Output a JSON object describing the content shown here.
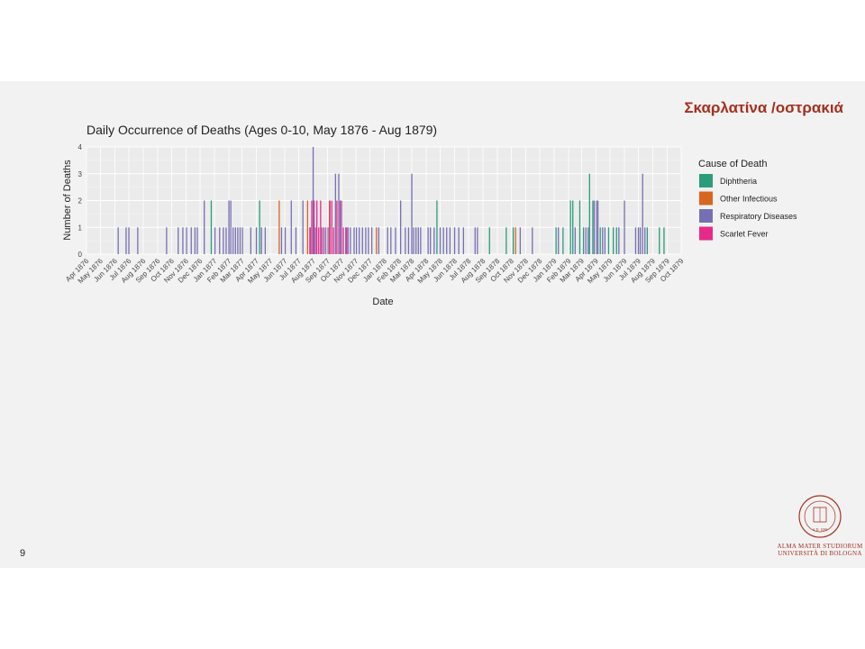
{
  "slide": {
    "title": "Σκαρλατίνα /οστρακιά",
    "page_number": "9",
    "logo_line1": "ALMA MATER STUDIORUM",
    "logo_line2": "UNIVERSITÀ DI BOLOGNA",
    "logo_seal_text": "A.D. 1088",
    "accent_color": "#a5301f"
  },
  "chart_data": {
    "type": "bar",
    "title": "Daily Occurrence of Deaths (Ages 0-10, May 1876 - Aug 1879)",
    "xlabel": "Date",
    "ylabel": "Number of Deaths",
    "ylim": [
      0,
      4
    ],
    "yticks": [
      "0",
      "1",
      "2",
      "3",
      "4"
    ],
    "xlim": [
      "1876-04-01",
      "1879-10-01"
    ],
    "xticks": [
      "Apr 1876",
      "May 1876",
      "Jun 1876",
      "Jul 1876",
      "Aug 1876",
      "Sep 1876",
      "Oct 1876",
      "Nov 1876",
      "Dec 1876",
      "Jan 1877",
      "Feb 1877",
      "Mar 1877",
      "Apr 1877",
      "May 1877",
      "Jun 1877",
      "Jul 1877",
      "Aug 1877",
      "Sep 1877",
      "Oct 1877",
      "Nov 1877",
      "Dec 1877",
      "Jan 1878",
      "Feb 1878",
      "Mar 1878",
      "Apr 1878",
      "May 1878",
      "Jun 1878",
      "Jul 1878",
      "Aug 1878",
      "Sep 1878",
      "Oct 1878",
      "Nov 1878",
      "Dec 1878",
      "Jan 1879",
      "Feb 1879",
      "Mar 1879",
      "Apr 1879",
      "May 1879",
      "Jun 1879",
      "Jul 1879",
      "Aug 1879",
      "Sep 1879",
      "Oct 1879"
    ],
    "grid": true,
    "legend_placement": "right",
    "legend_title": "Cause of Death",
    "series": [
      {
        "name": "Diphtheria",
        "color": "#2a9d7b",
        "points": [
          {
            "date": "1876-12-25",
            "value": 2
          },
          {
            "date": "1877-04-08",
            "value": 2
          },
          {
            "date": "1878-04-24",
            "value": 2
          },
          {
            "date": "1878-08-15",
            "value": 1
          },
          {
            "date": "1878-09-20",
            "value": 1
          },
          {
            "date": "1878-10-05",
            "value": 1
          },
          {
            "date": "1879-01-05",
            "value": 1
          },
          {
            "date": "1879-01-20",
            "value": 1
          },
          {
            "date": "1879-02-05",
            "value": 2
          },
          {
            "date": "1879-02-10",
            "value": 2
          },
          {
            "date": "1879-02-25",
            "value": 2
          },
          {
            "date": "1879-03-05",
            "value": 1
          },
          {
            "date": "1879-03-18",
            "value": 3
          },
          {
            "date": "1879-03-25",
            "value": 2
          },
          {
            "date": "1879-04-10",
            "value": 1
          },
          {
            "date": "1879-04-28",
            "value": 1
          },
          {
            "date": "1879-05-08",
            "value": 1
          },
          {
            "date": "1879-05-15",
            "value": 1
          },
          {
            "date": "1879-07-20",
            "value": 1
          },
          {
            "date": "1879-08-15",
            "value": 1
          },
          {
            "date": "1879-08-25",
            "value": 1
          }
        ]
      },
      {
        "name": "Other Infectious",
        "color": "#d9661f",
        "points": [
          {
            "date": "1877-05-20",
            "value": 2
          },
          {
            "date": "1877-07-20",
            "value": 2
          },
          {
            "date": "1877-09-05",
            "value": 2
          },
          {
            "date": "1877-12-15",
            "value": 1
          },
          {
            "date": "1878-10-10",
            "value": 1
          }
        ]
      },
      {
        "name": "Respiratory Diseases",
        "color": "#7570b3",
        "points": [
          {
            "date": "1876-06-08",
            "value": 1
          },
          {
            "date": "1876-06-25",
            "value": 1
          },
          {
            "date": "1876-07-01",
            "value": 1
          },
          {
            "date": "1876-07-20",
            "value": 1
          },
          {
            "date": "1876-09-20",
            "value": 1
          },
          {
            "date": "1876-10-15",
            "value": 1
          },
          {
            "date": "1876-10-25",
            "value": 1
          },
          {
            "date": "1876-11-02",
            "value": 1
          },
          {
            "date": "1876-11-12",
            "value": 1
          },
          {
            "date": "1876-11-20",
            "value": 1
          },
          {
            "date": "1876-11-25",
            "value": 1
          },
          {
            "date": "1876-12-10",
            "value": 2
          },
          {
            "date": "1877-01-02",
            "value": 1
          },
          {
            "date": "1877-01-12",
            "value": 1
          },
          {
            "date": "1877-01-20",
            "value": 1
          },
          {
            "date": "1877-01-26",
            "value": 1
          },
          {
            "date": "1877-02-01",
            "value": 2
          },
          {
            "date": "1877-02-05",
            "value": 2
          },
          {
            "date": "1877-02-10",
            "value": 1
          },
          {
            "date": "1877-02-15",
            "value": 1
          },
          {
            "date": "1877-02-20",
            "value": 1
          },
          {
            "date": "1877-02-25",
            "value": 1
          },
          {
            "date": "1877-03-02",
            "value": 1
          },
          {
            "date": "1877-03-20",
            "value": 1
          },
          {
            "date": "1877-04-01",
            "value": 1
          },
          {
            "date": "1877-04-12",
            "value": 1
          },
          {
            "date": "1877-04-20",
            "value": 1
          },
          {
            "date": "1877-05-25",
            "value": 1
          },
          {
            "date": "1877-06-02",
            "value": 1
          },
          {
            "date": "1877-06-15",
            "value": 2
          },
          {
            "date": "1877-06-25",
            "value": 1
          },
          {
            "date": "1877-07-10",
            "value": 2
          },
          {
            "date": "1877-07-26",
            "value": 1
          },
          {
            "date": "1877-08-01",
            "value": 4
          },
          {
            "date": "1877-08-06",
            "value": 1
          },
          {
            "date": "1877-08-20",
            "value": 1
          },
          {
            "date": "1877-08-28",
            "value": 1
          },
          {
            "date": "1877-09-02",
            "value": 1
          },
          {
            "date": "1877-09-18",
            "value": 3
          },
          {
            "date": "1877-09-25",
            "value": 3
          },
          {
            "date": "1877-10-01",
            "value": 2
          },
          {
            "date": "1877-10-10",
            "value": 1
          },
          {
            "date": "1877-10-15",
            "value": 1
          },
          {
            "date": "1877-10-20",
            "value": 1
          },
          {
            "date": "1877-10-28",
            "value": 1
          },
          {
            "date": "1877-11-02",
            "value": 1
          },
          {
            "date": "1877-11-08",
            "value": 1
          },
          {
            "date": "1877-11-15",
            "value": 1
          },
          {
            "date": "1877-11-22",
            "value": 1
          },
          {
            "date": "1877-11-28",
            "value": 1
          },
          {
            "date": "1877-12-05",
            "value": 1
          },
          {
            "date": "1877-12-20",
            "value": 1
          },
          {
            "date": "1878-01-08",
            "value": 1
          },
          {
            "date": "1878-01-15",
            "value": 1
          },
          {
            "date": "1878-01-25",
            "value": 1
          },
          {
            "date": "1878-02-05",
            "value": 2
          },
          {
            "date": "1878-02-15",
            "value": 1
          },
          {
            "date": "1878-02-22",
            "value": 1
          },
          {
            "date": "1878-03-01",
            "value": 3
          },
          {
            "date": "1878-03-05",
            "value": 1
          },
          {
            "date": "1878-03-10",
            "value": 1
          },
          {
            "date": "1878-03-15",
            "value": 1
          },
          {
            "date": "1878-03-20",
            "value": 1
          },
          {
            "date": "1878-04-05",
            "value": 1
          },
          {
            "date": "1878-04-10",
            "value": 1
          },
          {
            "date": "1878-04-18",
            "value": 1
          },
          {
            "date": "1878-05-01",
            "value": 1
          },
          {
            "date": "1878-05-08",
            "value": 1
          },
          {
            "date": "1878-05-15",
            "value": 1
          },
          {
            "date": "1878-05-22",
            "value": 1
          },
          {
            "date": "1878-06-01",
            "value": 1
          },
          {
            "date": "1878-06-10",
            "value": 1
          },
          {
            "date": "1878-06-20",
            "value": 1
          },
          {
            "date": "1878-07-15",
            "value": 1
          },
          {
            "date": "1878-07-20",
            "value": 1
          },
          {
            "date": "1878-10-20",
            "value": 1
          },
          {
            "date": "1878-11-15",
            "value": 1
          },
          {
            "date": "1879-01-10",
            "value": 1
          },
          {
            "date": "1879-02-15",
            "value": 1
          },
          {
            "date": "1879-03-10",
            "value": 1
          },
          {
            "date": "1879-03-15",
            "value": 1
          },
          {
            "date": "1879-03-28",
            "value": 2
          },
          {
            "date": "1879-04-02",
            "value": 2
          },
          {
            "date": "1879-04-05",
            "value": 2
          },
          {
            "date": "1879-04-15",
            "value": 1
          },
          {
            "date": "1879-04-20",
            "value": 1
          },
          {
            "date": "1879-05-20",
            "value": 1
          },
          {
            "date": "1879-06-01",
            "value": 2
          },
          {
            "date": "1879-06-25",
            "value": 1
          },
          {
            "date": "1879-07-01",
            "value": 1
          },
          {
            "date": "1879-07-05",
            "value": 1
          },
          {
            "date": "1879-07-10",
            "value": 3
          },
          {
            "date": "1879-07-15",
            "value": 1
          }
        ]
      },
      {
        "name": "Scarlet Fever",
        "color": "#e7298a",
        "points": [
          {
            "date": "1877-07-25",
            "value": 1
          },
          {
            "date": "1877-07-29",
            "value": 2
          },
          {
            "date": "1877-08-03",
            "value": 2
          },
          {
            "date": "1877-08-09",
            "value": 2
          },
          {
            "date": "1877-08-13",
            "value": 1
          },
          {
            "date": "1877-08-17",
            "value": 2
          },
          {
            "date": "1877-08-24",
            "value": 1
          },
          {
            "date": "1877-09-06",
            "value": 2
          },
          {
            "date": "1877-09-10",
            "value": 2
          },
          {
            "date": "1877-09-14",
            "value": 1
          },
          {
            "date": "1877-09-21",
            "value": 2
          },
          {
            "date": "1877-09-28",
            "value": 2
          },
          {
            "date": "1877-10-05",
            "value": 1
          },
          {
            "date": "1877-10-12",
            "value": 1
          }
        ]
      }
    ]
  }
}
